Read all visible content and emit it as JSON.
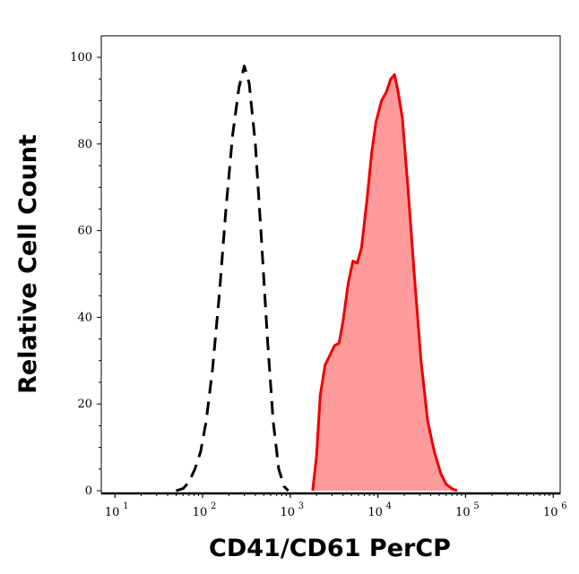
{
  "chart_data": {
    "type": "area",
    "xlabel": "CD41/CD61 PerCP",
    "ylabel": "Relative Cell Count",
    "x_scale": "log",
    "xlim": [
      7,
      1200000
    ],
    "ylim": [
      0,
      105
    ],
    "x_ticks": [
      {
        "base": "10",
        "exp": "1",
        "value": 10
      },
      {
        "base": "10",
        "exp": "2",
        "value": 100
      },
      {
        "base": "10",
        "exp": "3",
        "value": 1000
      },
      {
        "base": "10",
        "exp": "4",
        "value": 10000
      },
      {
        "base": "10",
        "exp": "5",
        "value": 100000
      },
      {
        "base": "10",
        "exp": "6",
        "value": 1000000
      }
    ],
    "y_ticks": [
      "0",
      "20",
      "40",
      "60",
      "80",
      "100"
    ],
    "series": [
      {
        "style": "dashed",
        "color": "#000000",
        "fill": "none",
        "points": [
          [
            50,
            0
          ],
          [
            60,
            0.5
          ],
          [
            70,
            2
          ],
          [
            82,
            5
          ],
          [
            95,
            9
          ],
          [
            110,
            16
          ],
          [
            130,
            28
          ],
          [
            155,
            45
          ],
          [
            185,
            65
          ],
          [
            220,
            82
          ],
          [
            260,
            93
          ],
          [
            300,
            98
          ],
          [
            340,
            94
          ],
          [
            400,
            80
          ],
          [
            470,
            58
          ],
          [
            550,
            35
          ],
          [
            640,
            16
          ],
          [
            740,
            5
          ],
          [
            850,
            1
          ],
          [
            950,
            0
          ]
        ]
      },
      {
        "style": "solid",
        "color": "#ee0000",
        "fill": "#ff9b9b",
        "points": [
          [
            1800,
            0
          ],
          [
            2000,
            8
          ],
          [
            2200,
            22
          ],
          [
            2500,
            29
          ],
          [
            2800,
            31
          ],
          [
            3200,
            33.5
          ],
          [
            3600,
            34
          ],
          [
            4000,
            39
          ],
          [
            4600,
            48
          ],
          [
            5200,
            53
          ],
          [
            5800,
            52.5
          ],
          [
            6500,
            56
          ],
          [
            7500,
            67
          ],
          [
            8500,
            78
          ],
          [
            9500,
            85
          ],
          [
            11000,
            90
          ],
          [
            12500,
            92
          ],
          [
            14000,
            95
          ],
          [
            15500,
            96
          ],
          [
            17000,
            92
          ],
          [
            19000,
            86
          ],
          [
            22000,
            70
          ],
          [
            26000,
            50
          ],
          [
            31000,
            30
          ],
          [
            37000,
            16
          ],
          [
            44000,
            9
          ],
          [
            52000,
            4
          ],
          [
            60000,
            1.5
          ],
          [
            70000,
            0.5
          ],
          [
            80000,
            0
          ]
        ]
      }
    ]
  }
}
